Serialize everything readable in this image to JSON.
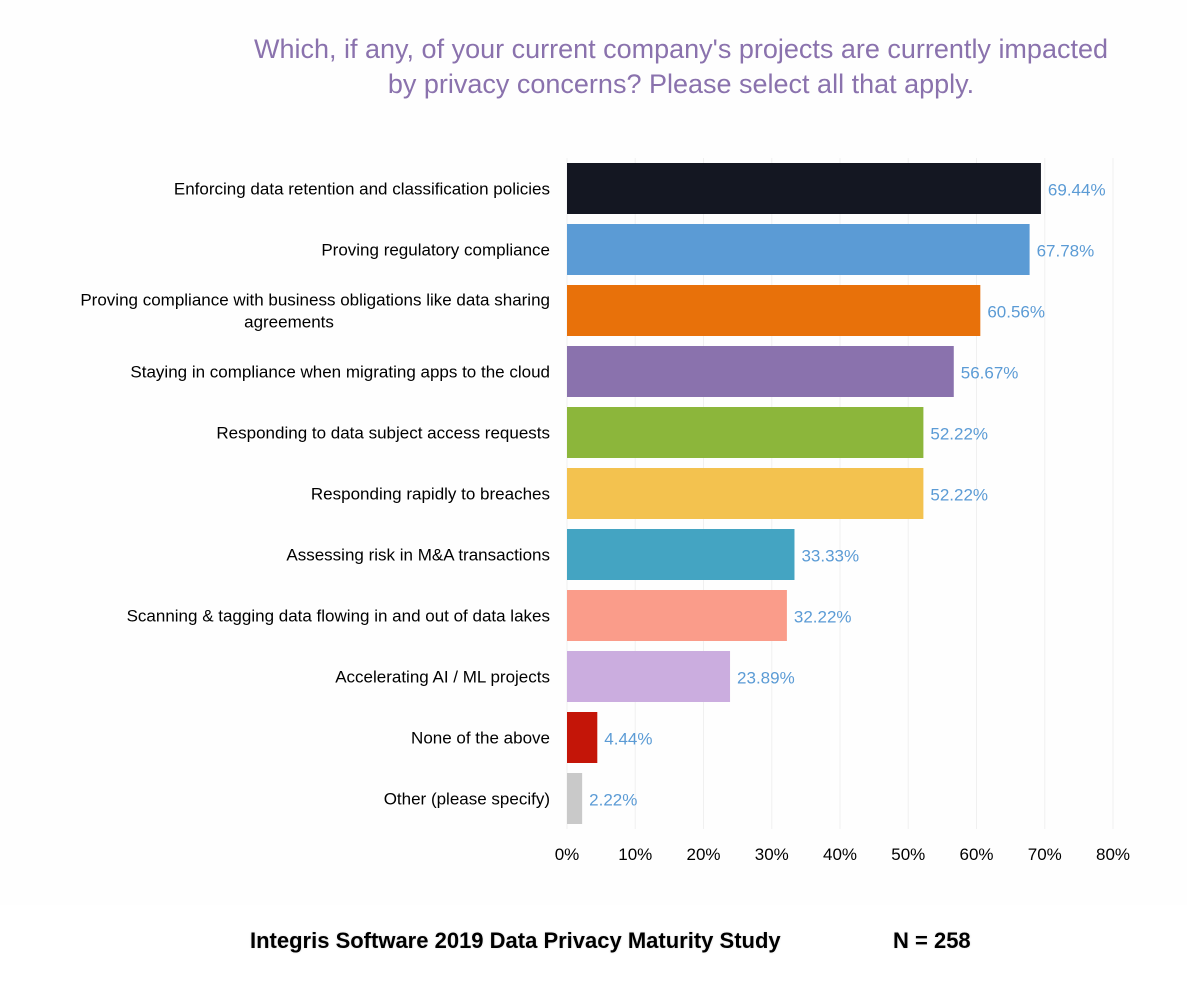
{
  "chart_data": {
    "type": "bar",
    "orientation": "horizontal",
    "title": "Which, if any, of your current company's projects are currently impacted by privacy concerns? Please select all that apply.",
    "title_lines": [
      "Which, if any, of your current company's projects are currently impacted",
      "by privacy concerns? Please select all that apply."
    ],
    "categories": [
      "Enforcing data retention and classification policies",
      "Proving regulatory compliance",
      "Proving compliance with business obligations like data sharing agreements",
      "Staying in compliance when migrating apps to the cloud",
      "Responding to data subject access requests",
      "Responding rapidly to breaches",
      "Assessing risk in M&A transactions",
      "Scanning & tagging data flowing in and out of data lakes",
      "Accelerating AI / ML projects",
      "None of the above",
      "Other (please specify)"
    ],
    "category_lines": [
      [
        "Enforcing data retention and classification policies"
      ],
      [
        "Proving regulatory compliance"
      ],
      [
        "Proving compliance with business obligations like data sharing",
        "agreements"
      ],
      [
        "Staying in compliance when migrating apps to the cloud"
      ],
      [
        "Responding to data subject access requests"
      ],
      [
        "Responding rapidly to breaches"
      ],
      [
        "Assessing risk in M&A transactions"
      ],
      [
        "Scanning & tagging data flowing in and out of data lakes"
      ],
      [
        "Accelerating AI / ML projects"
      ],
      [
        "None of the above"
      ],
      [
        "Other (please specify)"
      ]
    ],
    "values": [
      69.44,
      67.78,
      60.56,
      56.67,
      52.22,
      52.22,
      33.33,
      32.22,
      23.89,
      4.44,
      2.22
    ],
    "value_labels": [
      "69.44%",
      "67.78%",
      "60.56%",
      "56.67%",
      "52.22%",
      "52.22%",
      "33.33%",
      "32.22%",
      "23.89%",
      "4.44%",
      "2.22%"
    ],
    "colors": [
      "#141722",
      "#5b9bd5",
      "#e8710a",
      "#8a72ad",
      "#8cb63b",
      "#f3c24f",
      "#44a4c2",
      "#fa9c8a",
      "#cbaddf",
      "#c41508",
      "#c9c9c9"
    ],
    "xlim": [
      0,
      80
    ],
    "xticks": [
      0,
      10,
      20,
      30,
      40,
      50,
      60,
      70,
      80
    ],
    "xtick_labels": [
      "0%",
      "10%",
      "20%",
      "30%",
      "40%",
      "50%",
      "60%",
      "70%",
      "80%"
    ],
    "xlabel": "",
    "ylabel": "",
    "grid": true,
    "value_label_color": "#5b9bd5",
    "label_color": "#000000",
    "title_color": "#8a72ad"
  },
  "footer": {
    "study": "Integris Software 2019 Data Privacy Maturity Study",
    "n": "N = 258"
  }
}
